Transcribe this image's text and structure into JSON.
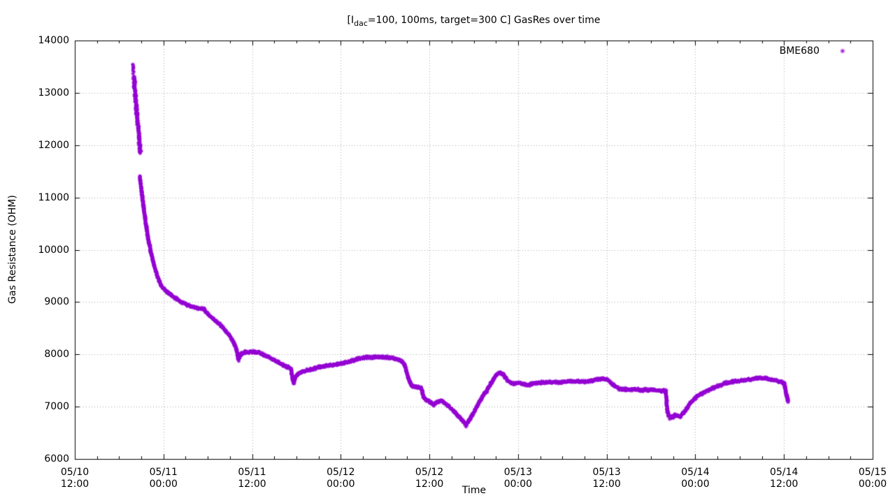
{
  "title": {
    "prefix": "[I",
    "subscript": "dac",
    "suffix": "=100, 100ms, target=300 C] GasRes over time"
  },
  "legend": {
    "label": "BME680",
    "marker": "asterisk-icon"
  },
  "axes": {
    "x": {
      "label": "Time",
      "ticks": [
        {
          "date": "05/10",
          "time": "12:00"
        },
        {
          "date": "05/11",
          "time": "00:00"
        },
        {
          "date": "05/11",
          "time": "12:00"
        },
        {
          "date": "05/12",
          "time": "00:00"
        },
        {
          "date": "05/12",
          "time": "12:00"
        },
        {
          "date": "05/13",
          "time": "00:00"
        },
        {
          "date": "05/13",
          "time": "12:00"
        },
        {
          "date": "05/14",
          "time": "00:00"
        },
        {
          "date": "05/14",
          "time": "12:00"
        },
        {
          "date": "05/15",
          "time": "00:00"
        }
      ]
    },
    "y": {
      "label": "Gas Resistance (OHM)",
      "tick_labels": [
        "6000",
        "7000",
        "8000",
        "9000",
        "10000",
        "11000",
        "12000",
        "13000",
        "14000"
      ]
    }
  },
  "style": {
    "background": "#ffffff",
    "foreground": "#000000",
    "grid_color": "#a8a8a8",
    "series_color": "#9400d3"
  },
  "chart_data": {
    "type": "scatter",
    "title": "[I_dac=100, 100ms, target=300 C] GasRes over time",
    "xlabel": "Time",
    "ylabel": "Gas Resistance (OHM)",
    "x_unit": "hours since 05/10 12:00",
    "xlim_hours": [
      0,
      108
    ],
    "ylim": [
      6000,
      14000
    ],
    "x_major_step_hours": 12,
    "x_minor_step_hours": 3,
    "y_major_step": 1000,
    "grid": "dotted",
    "legend_position": "top-right-inside",
    "x_tick_labels": [
      "05/10 12:00",
      "05/11 00:00",
      "05/11 12:00",
      "05/12 00:00",
      "05/12 12:00",
      "05/13 00:00",
      "05/13 12:00",
      "05/14 00:00",
      "05/14 12:00",
      "05/15 00:00"
    ],
    "series": [
      {
        "name": "BME680",
        "color": "#9400d3",
        "marker": "asterisk",
        "segments": [
          {
            "spacing": 2.2,
            "jx": 1.2,
            "jy": 25,
            "anchors": [
              [
                7.86,
                13560
              ],
              [
                7.92,
                13460
              ],
              [
                7.98,
                13370
              ]
            ]
          },
          {
            "spacing": 0.6,
            "jx": 1.8,
            "jy": 30,
            "anchors": [
              [
                8.0,
                13300
              ],
              [
                8.1,
                13120
              ],
              [
                8.25,
                12850
              ],
              [
                8.4,
                12600
              ],
              [
                8.55,
                12360
              ],
              [
                8.7,
                12130
              ],
              [
                8.82,
                11950
              ],
              [
                8.88,
                11870
              ]
            ]
          },
          {
            "spacing": 0.55,
            "jx": 0.9,
            "jy": 22,
            "anchors": [
              [
                8.8,
                11400
              ],
              [
                9.05,
                11100
              ],
              [
                9.35,
                10780
              ],
              [
                9.7,
                10430
              ],
              [
                10.0,
                10160
              ],
              [
                10.35,
                9920
              ],
              [
                10.75,
                9700
              ],
              [
                11.2,
                9480
              ],
              [
                11.7,
                9310
              ],
              [
                12.4,
                9200
              ],
              [
                13.3,
                9110
              ],
              [
                14.3,
                9010
              ],
              [
                15.3,
                8940
              ],
              [
                16.4,
                8890
              ],
              [
                17.5,
                8860
              ],
              [
                18.3,
                8740
              ],
              [
                19.0,
                8650
              ],
              [
                19.8,
                8560
              ],
              [
                20.4,
                8450
              ],
              [
                21.0,
                8350
              ],
              [
                21.5,
                8230
              ],
              [
                21.9,
                8090
              ],
              [
                22.15,
                7910
              ],
              [
                22.45,
                8000
              ],
              [
                23.0,
                8040
              ],
              [
                23.9,
                8050
              ],
              [
                24.8,
                8040
              ],
              [
                25.5,
                8000
              ],
              [
                26.2,
                7950
              ],
              [
                26.9,
                7890
              ],
              [
                27.6,
                7840
              ],
              [
                28.3,
                7790
              ],
              [
                28.9,
                7750
              ],
              [
                29.25,
                7730
              ],
              [
                29.5,
                7520
              ],
              [
                29.65,
                7460
              ],
              [
                29.85,
                7570
              ],
              [
                30.3,
                7640
              ],
              [
                30.8,
                7670
              ],
              [
                31.6,
                7700
              ],
              [
                32.6,
                7740
              ],
              [
                33.6,
                7770
              ],
              [
                34.6,
                7790
              ],
              [
                35.6,
                7815
              ],
              [
                36.6,
                7845
              ],
              [
                37.6,
                7885
              ],
              [
                38.6,
                7925
              ],
              [
                39.6,
                7945
              ],
              [
                40.6,
                7950
              ],
              [
                41.6,
                7950
              ],
              [
                42.6,
                7935
              ],
              [
                43.4,
                7915
              ],
              [
                44.1,
                7880
              ],
              [
                44.6,
                7820
              ],
              [
                44.9,
                7680
              ],
              [
                45.2,
                7520
              ],
              [
                45.6,
                7400
              ],
              [
                46.0,
                7380
              ],
              [
                46.9,
                7360
              ],
              [
                47.2,
                7190
              ],
              [
                47.5,
                7130
              ],
              [
                48.0,
                7100
              ],
              [
                48.6,
                7040
              ],
              [
                49.1,
                7090
              ],
              [
                49.6,
                7110
              ],
              [
                50.1,
                7060
              ],
              [
                50.8,
                6990
              ],
              [
                51.5,
                6890
              ],
              [
                52.1,
                6800
              ],
              [
                52.6,
                6720
              ],
              [
                52.95,
                6670
              ],
              [
                53.3,
                6720
              ],
              [
                53.8,
                6830
              ],
              [
                54.4,
                6990
              ],
              [
                55.0,
                7150
              ],
              [
                55.7,
                7290
              ],
              [
                56.4,
                7460
              ],
              [
                57.0,
                7600
              ],
              [
                57.5,
                7650
              ],
              [
                58.0,
                7620
              ],
              [
                58.6,
                7500
              ],
              [
                59.3,
                7440
              ],
              [
                60.0,
                7450
              ],
              [
                60.8,
                7430
              ],
              [
                61.4,
                7410
              ],
              [
                62.0,
                7440
              ],
              [
                62.8,
                7460
              ],
              [
                64.0,
                7470
              ],
              [
                65.5,
                7470
              ],
              [
                67.0,
                7480
              ],
              [
                68.5,
                7480
              ],
              [
                69.8,
                7490
              ],
              [
                70.8,
                7520
              ],
              [
                71.5,
                7540
              ],
              [
                72.0,
                7520
              ],
              [
                72.5,
                7460
              ],
              [
                73.1,
                7390
              ],
              [
                73.8,
                7340
              ],
              [
                74.8,
                7330
              ],
              [
                75.8,
                7330
              ],
              [
                76.6,
                7320
              ],
              [
                77.6,
                7320
              ],
              [
                78.6,
                7320
              ],
              [
                79.4,
                7310
              ],
              [
                80.0,
                7300
              ],
              [
                80.2,
                6920
              ],
              [
                80.4,
                6820
              ],
              [
                80.8,
                6800
              ],
              [
                81.2,
                6840
              ],
              [
                81.6,
                6820
              ],
              [
                82.0,
                6810
              ],
              [
                82.4,
                6880
              ],
              [
                82.8,
                6960
              ],
              [
                83.3,
                7060
              ],
              [
                83.8,
                7150
              ],
              [
                84.4,
                7210
              ],
              [
                85.0,
                7260
              ],
              [
                85.8,
                7320
              ],
              [
                86.6,
                7370
              ],
              [
                87.4,
                7410
              ],
              [
                88.3,
                7460
              ],
              [
                89.7,
                7490
              ],
              [
                91.2,
                7520
              ],
              [
                92.2,
                7545
              ],
              [
                93.3,
                7550
              ],
              [
                94.3,
                7520
              ],
              [
                95.0,
                7500
              ],
              [
                95.7,
                7470
              ],
              [
                96.05,
                7440
              ],
              [
                96.3,
                7250
              ],
              [
                96.5,
                7130
              ],
              [
                96.6,
                7110
              ]
            ]
          }
        ],
        "outlier_points": [
          [
            22.2,
            7870
          ],
          [
            29.62,
            7440
          ],
          [
            52.85,
            6640
          ],
          [
            52.97,
            6615
          ],
          [
            53.07,
            6645
          ],
          [
            80.5,
            6762
          ],
          [
            81.05,
            6780
          ],
          [
            96.55,
            7085
          ]
        ]
      }
    ]
  }
}
